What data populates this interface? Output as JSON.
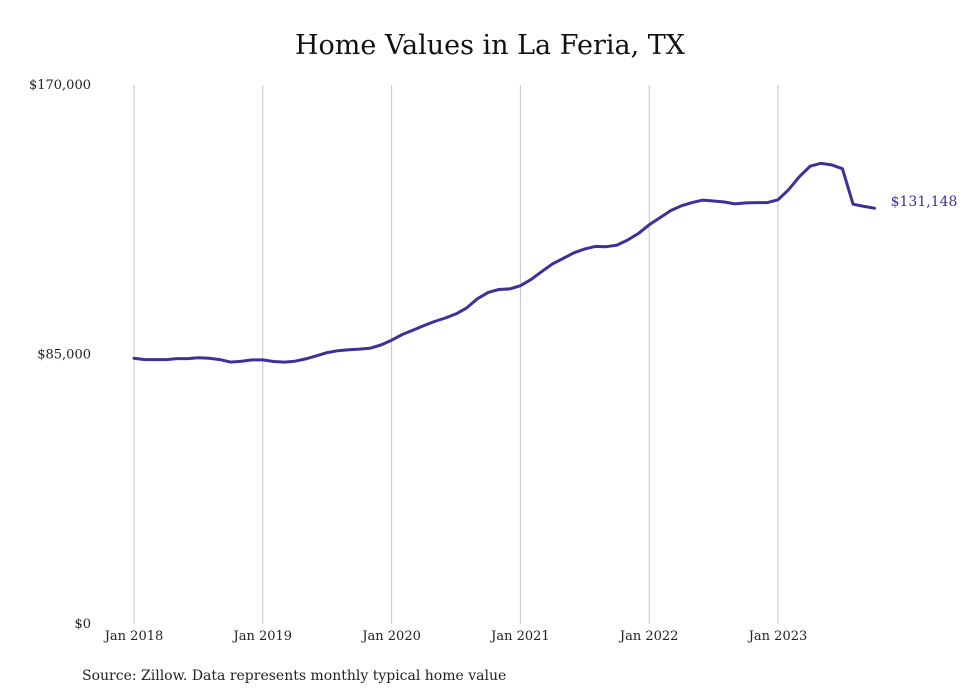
{
  "chart_data": {
    "type": "line",
    "title": "Home Values in La Feria, TX",
    "xlabel": "",
    "ylabel": "",
    "ylim": [
      0,
      170000
    ],
    "y_ticks": [
      {
        "value": 170000,
        "label": "$170,000"
      },
      {
        "value": 85000,
        "label": "$85,000"
      },
      {
        "value": 0,
        "label": "$0"
      }
    ],
    "x_ticks": [
      {
        "value": 2018.0,
        "label": "Jan 2018"
      },
      {
        "value": 2019.0,
        "label": "Jan 2019"
      },
      {
        "value": 2020.0,
        "label": "Jan 2020"
      },
      {
        "value": 2021.0,
        "label": "Jan 2021"
      },
      {
        "value": 2022.0,
        "label": "Jan 2022"
      },
      {
        "value": 2023.0,
        "label": "Jan 2023"
      }
    ],
    "grid": "vertical",
    "line_color": "#3b3299",
    "series": [
      {
        "x": [
          2018.0,
          2018.083,
          2018.167,
          2018.25,
          2018.333,
          2018.417,
          2018.5,
          2018.583,
          2018.667,
          2018.75,
          2018.833,
          2018.917,
          2019.0,
          2019.083,
          2019.167,
          2019.25,
          2019.333,
          2019.417,
          2019.5,
          2019.583,
          2019.667,
          2019.75,
          2019.833,
          2019.917,
          2020.0,
          2020.083,
          2020.167,
          2020.25,
          2020.333,
          2020.417,
          2020.5,
          2020.583,
          2020.667,
          2020.75,
          2020.833,
          2020.917,
          2021.0,
          2021.083,
          2021.167,
          2021.25,
          2021.333,
          2021.417,
          2021.5,
          2021.583,
          2021.667,
          2021.75,
          2021.833,
          2021.917,
          2022.0,
          2022.083,
          2022.167,
          2022.25,
          2022.333,
          2022.417,
          2022.5,
          2022.583,
          2022.667,
          2022.75,
          2022.833,
          2022.917,
          2023.0,
          2023.083,
          2023.167,
          2023.25,
          2023.333,
          2023.417,
          2023.5,
          2023.583,
          2023.667,
          2023.75
        ],
        "values": [
          83800,
          83400,
          83400,
          83400,
          83700,
          83700,
          84000,
          83800,
          83400,
          82600,
          82900,
          83300,
          83300,
          82800,
          82600,
          82900,
          83600,
          84600,
          85600,
          86200,
          86500,
          86700,
          87000,
          88000,
          89500,
          91300,
          92700,
          94100,
          95400,
          96500,
          97800,
          99700,
          102600,
          104600,
          105500,
          105700,
          106700,
          108700,
          111200,
          113600,
          115300,
          117100,
          118300,
          119100,
          119000,
          119500,
          121100,
          123200,
          125900,
          128100,
          130400,
          131900,
          132900,
          133700,
          133400,
          133100,
          132500,
          132800,
          132900,
          132900,
          133800,
          137000,
          141100,
          144400,
          145300,
          144800,
          143600,
          132400,
          131700,
          131148
        ]
      }
    ],
    "end_label": "$131,148"
  },
  "source": "Source: Zillow. Data represents monthly typical home value"
}
